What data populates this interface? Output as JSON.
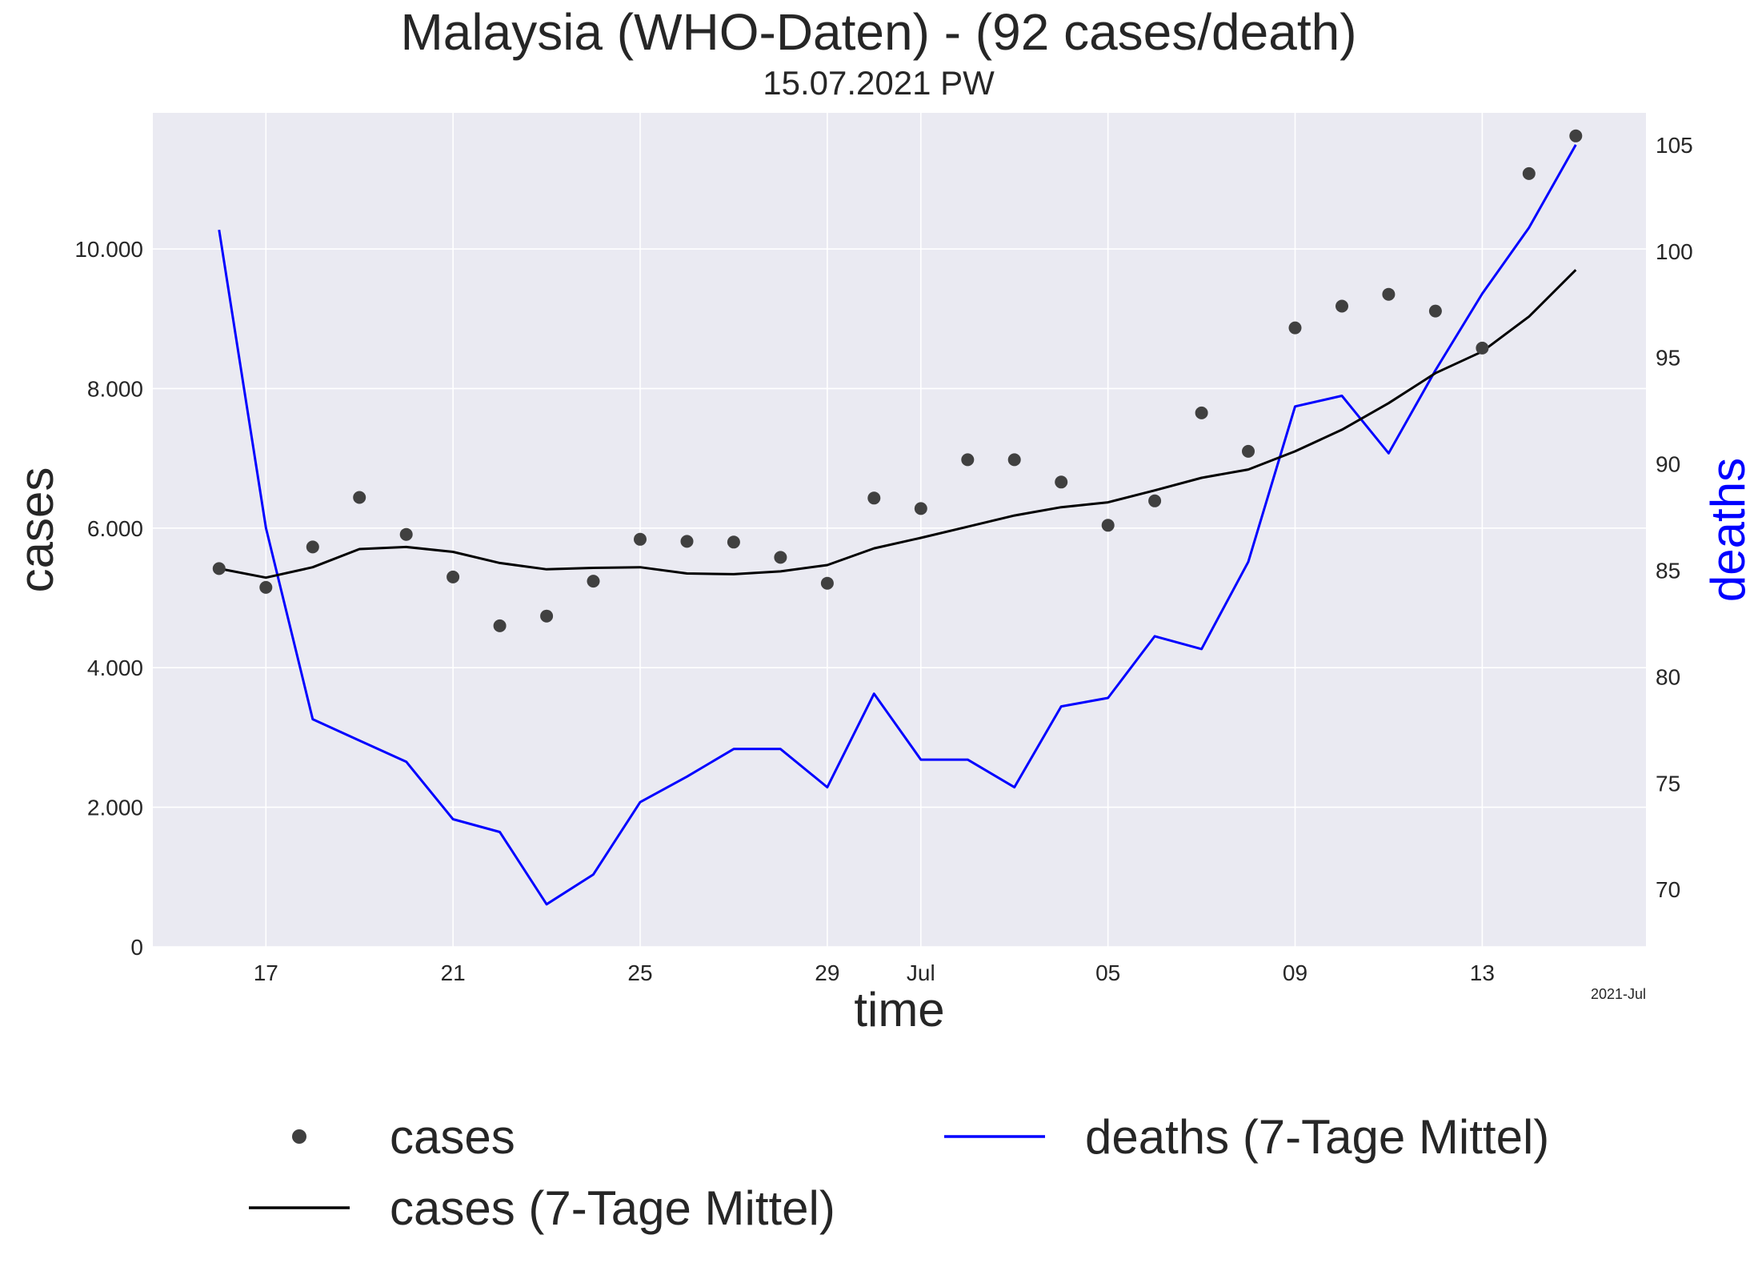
{
  "chart_data": {
    "type": "line",
    "title": "Malaysia (WHO-Daten) - (92 cases/death)",
    "subtitle": "15.07.2021 PW",
    "xlabel": "time",
    "ylabel": "cases",
    "y2label": "deaths",
    "x_offset_label": "2021-Jul",
    "x_ticks": [
      {
        "date": "2021-06-17",
        "label": "17"
      },
      {
        "date": "2021-06-21",
        "label": "21"
      },
      {
        "date": "2021-06-25",
        "label": "25"
      },
      {
        "date": "2021-06-29",
        "label": "29"
      },
      {
        "date": "2021-07-01",
        "label": "Jul"
      },
      {
        "date": "2021-07-05",
        "label": "05"
      },
      {
        "date": "2021-07-09",
        "label": "09"
      },
      {
        "date": "2021-07-13",
        "label": "13"
      }
    ],
    "y_ticks": [
      {
        "value": 0,
        "label": "0"
      },
      {
        "value": 2000,
        "label": "2.000"
      },
      {
        "value": 4000,
        "label": "4.000"
      },
      {
        "value": 6000,
        "label": "6.000"
      },
      {
        "value": 8000,
        "label": "8.000"
      },
      {
        "value": 10000,
        "label": "10.000"
      }
    ],
    "y2_ticks": [
      {
        "value": 70,
        "label": "70"
      },
      {
        "value": 75,
        "label": "75"
      },
      {
        "value": 80,
        "label": "80"
      },
      {
        "value": 85,
        "label": "85"
      },
      {
        "value": 90,
        "label": "90"
      },
      {
        "value": 95,
        "label": "95"
      },
      {
        "value": 100,
        "label": "100"
      },
      {
        "value": 105,
        "label": "105"
      }
    ],
    "xlim": [
      "2021-06-14T14:00",
      "2021-07-16T12:00"
    ],
    "ylim": [
      0,
      11950
    ],
    "y2lim": [
      67.3,
      106.5
    ],
    "grid": true,
    "legend_position": "bottom",
    "x": [
      "2021-06-16",
      "2021-06-17",
      "2021-06-18",
      "2021-06-19",
      "2021-06-20",
      "2021-06-21",
      "2021-06-22",
      "2021-06-23",
      "2021-06-24",
      "2021-06-25",
      "2021-06-26",
      "2021-06-27",
      "2021-06-28",
      "2021-06-29",
      "2021-06-30",
      "2021-07-01",
      "2021-07-02",
      "2021-07-03",
      "2021-07-04",
      "2021-07-05",
      "2021-07-06",
      "2021-07-07",
      "2021-07-08",
      "2021-07-09",
      "2021-07-10",
      "2021-07-11",
      "2021-07-12",
      "2021-07-13",
      "2021-07-14",
      "2021-07-15"
    ],
    "series": [
      {
        "name": "cases",
        "kind": "points",
        "axis": "left",
        "color": "#404040",
        "values": [
          5420,
          5150,
          5730,
          6440,
          5910,
          5300,
          4600,
          4740,
          5240,
          5840,
          5810,
          5800,
          5580,
          5210,
          6430,
          6280,
          6980,
          6980,
          6660,
          6040,
          6390,
          7650,
          7100,
          8870,
          9180,
          9350,
          9110,
          8580,
          11080,
          11620
        ]
      },
      {
        "name": "cases (7-Tage Mittel)",
        "kind": "line",
        "axis": "left",
        "color": "#000000",
        "values": [
          5420,
          5290,
          5440,
          5700,
          5730,
          5660,
          5500,
          5410,
          5430,
          5440,
          5350,
          5340,
          5380,
          5470,
          5710,
          5860,
          6020,
          6180,
          6300,
          6370,
          6540,
          6720,
          6840,
          7100,
          7410,
          7790,
          8220,
          8530,
          9030,
          9700
        ]
      },
      {
        "name": "deaths (7-Tage Mittel)",
        "kind": "line",
        "axis": "right",
        "color": "#0000ff",
        "values": [
          101.0,
          87.0,
          78.0,
          77.0,
          76.0,
          73.3,
          72.7,
          69.3,
          70.7,
          74.1,
          75.3,
          76.6,
          76.6,
          74.8,
          79.2,
          76.1,
          76.1,
          74.8,
          78.6,
          79.0,
          81.9,
          81.3,
          85.4,
          92.7,
          93.2,
          90.5,
          94.4,
          98.0,
          101.1,
          105.0
        ]
      }
    ]
  }
}
